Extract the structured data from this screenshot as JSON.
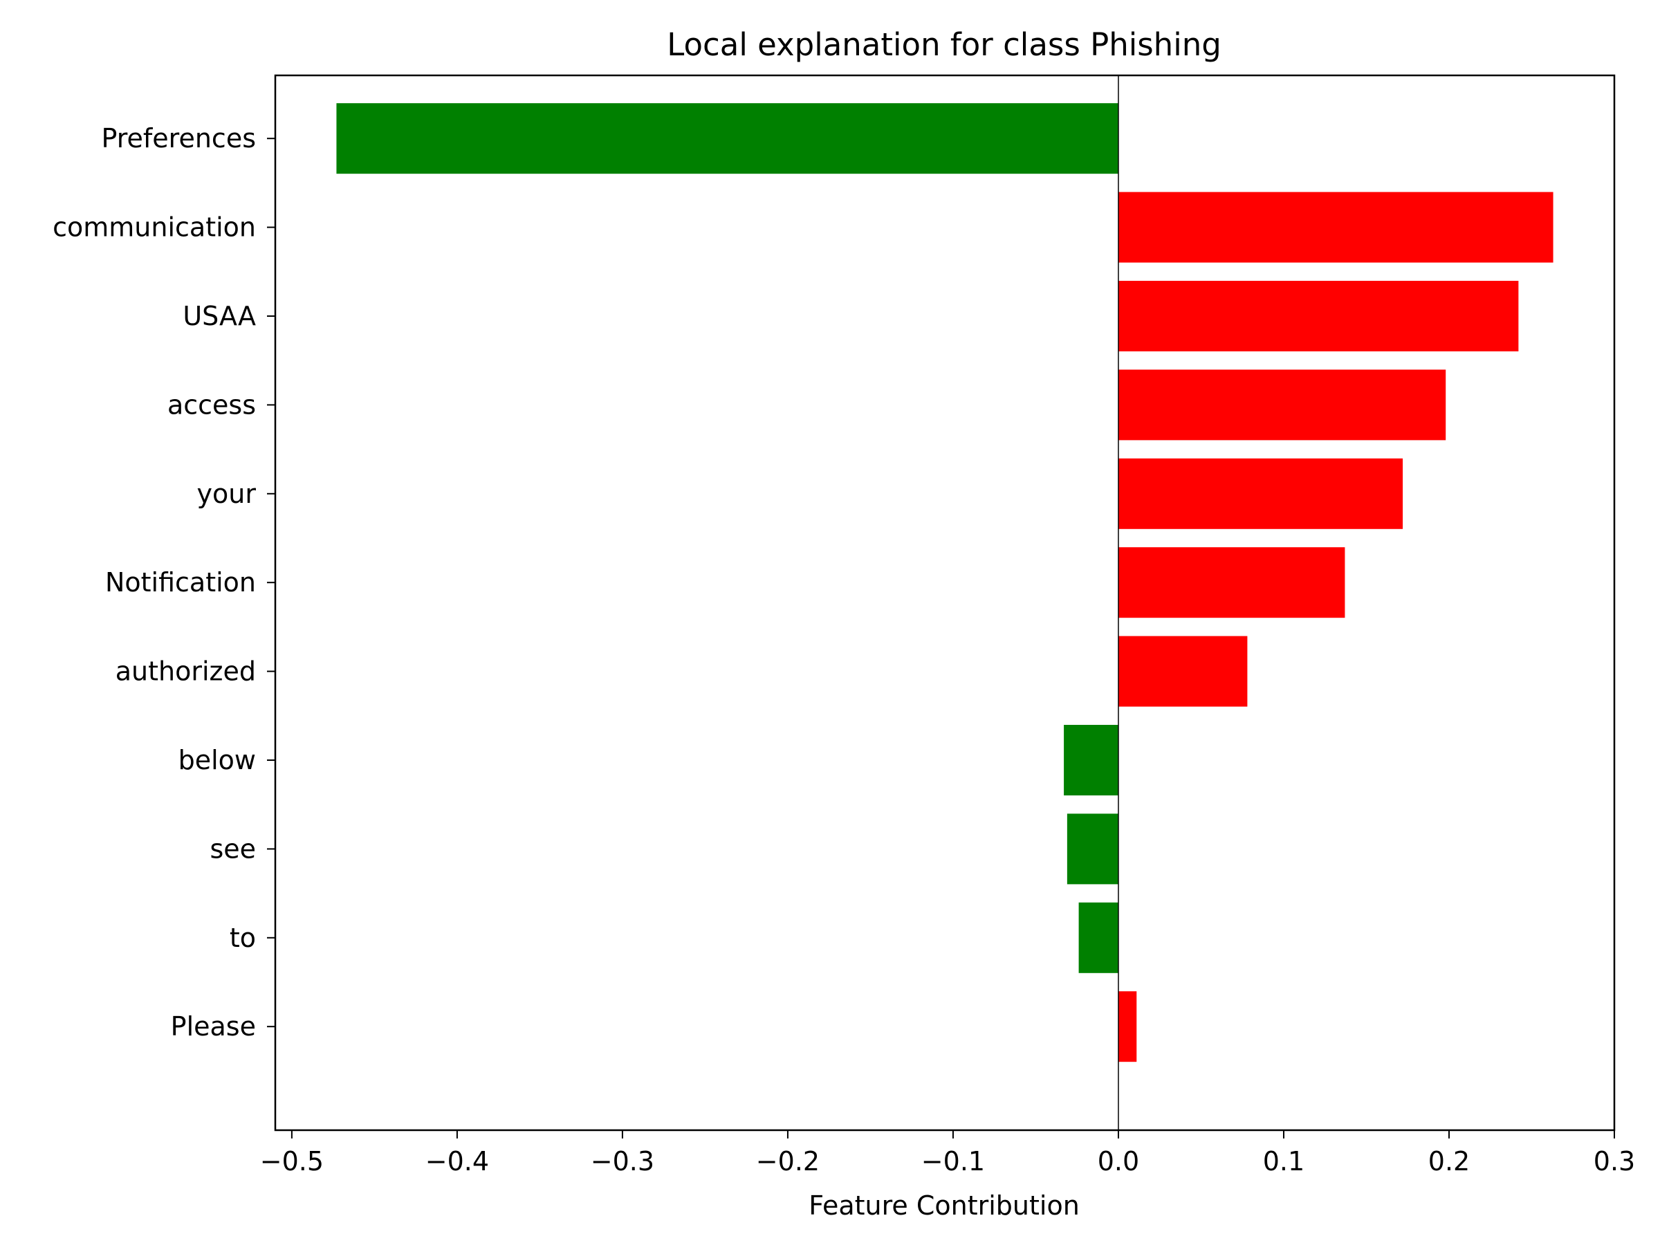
{
  "chart_data": {
    "type": "bar",
    "orientation": "horizontal",
    "title": "Local explanation for class Phishing",
    "xlabel": "Feature Contribution",
    "ylabel": "",
    "xlim": [
      -0.51,
      0.3
    ],
    "xticks": [
      -0.5,
      -0.4,
      -0.3,
      -0.2,
      -0.1,
      0.0,
      0.1,
      0.2,
      0.3
    ],
    "xtick_labels": [
      "−0.5",
      "−0.4",
      "−0.3",
      "−0.2",
      "−0.1",
      "0.0",
      "0.1",
      "0.2",
      "0.3"
    ],
    "grid": false,
    "zero_line": true,
    "categories": [
      "Preferences",
      "communication",
      "USAA",
      "access",
      "your",
      "Notification",
      "authorized",
      "below",
      "see",
      "to",
      "Please"
    ],
    "values": [
      -0.473,
      0.263,
      0.242,
      0.198,
      0.172,
      0.137,
      0.078,
      -0.033,
      -0.031,
      -0.024,
      0.011
    ],
    "colors": {
      "positive": "#ff0000",
      "negative": "#008000",
      "axis": "#000000",
      "background": "#ffffff"
    }
  }
}
